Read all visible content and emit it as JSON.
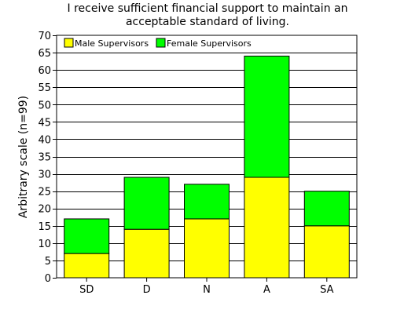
{
  "chart_data": {
    "type": "bar",
    "stacked": true,
    "title": [
      "I receive sufficient financial support to maintain an",
      "acceptable standard of living."
    ],
    "xlabel": "",
    "ylabel": "Arbitrary scale (n=99)",
    "categories": [
      "SD",
      "D",
      "N",
      "A",
      "SA"
    ],
    "series": [
      {
        "name": "Male Supervisors",
        "color": "#ffff00",
        "values": [
          7,
          14,
          17,
          29,
          15
        ]
      },
      {
        "name": "Female Supervisors",
        "color": "#00ff00",
        "values": [
          10,
          15,
          10,
          35,
          10
        ]
      }
    ],
    "ylim": [
      0,
      70
    ],
    "yticks": [
      0,
      5,
      10,
      15,
      20,
      25,
      30,
      35,
      40,
      45,
      50,
      55,
      60,
      65,
      70
    ],
    "grid": true,
    "legend": "top-left"
  }
}
